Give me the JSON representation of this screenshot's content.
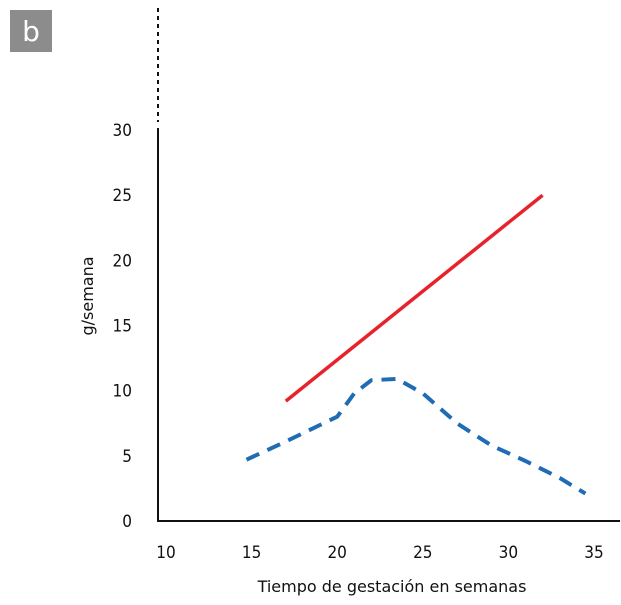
{
  "panel_label": "b",
  "chart_data": {
    "type": "line",
    "title": "",
    "xlabel": "Tiempo de gestación en semanas",
    "ylabel": "g/semana",
    "xlim": [
      10,
      35
    ],
    "ylim": [
      0,
      30
    ],
    "x_ticks": [
      "10",
      "15",
      "20",
      "25",
      "30",
      "35"
    ],
    "y_ticks": [
      "0",
      "5",
      "10",
      "15",
      "20",
      "25",
      "30"
    ],
    "grid": false,
    "legend": "none",
    "y_axis_break_above": true,
    "series": [
      {
        "style": "solid",
        "color": "#e8222a",
        "x": [
          17,
          32
        ],
        "y": [
          9.2,
          25
        ]
      },
      {
        "style": "dashed",
        "color": "#1f6cb5",
        "x": [
          14.7,
          17,
          20,
          21,
          22,
          23.5,
          25,
          27,
          29,
          31,
          33,
          34.5
        ],
        "y": [
          4.7,
          6.1,
          8,
          9.8,
          10.8,
          10.9,
          9.8,
          7.5,
          5.8,
          4.6,
          3.3,
          2.1
        ]
      }
    ]
  }
}
